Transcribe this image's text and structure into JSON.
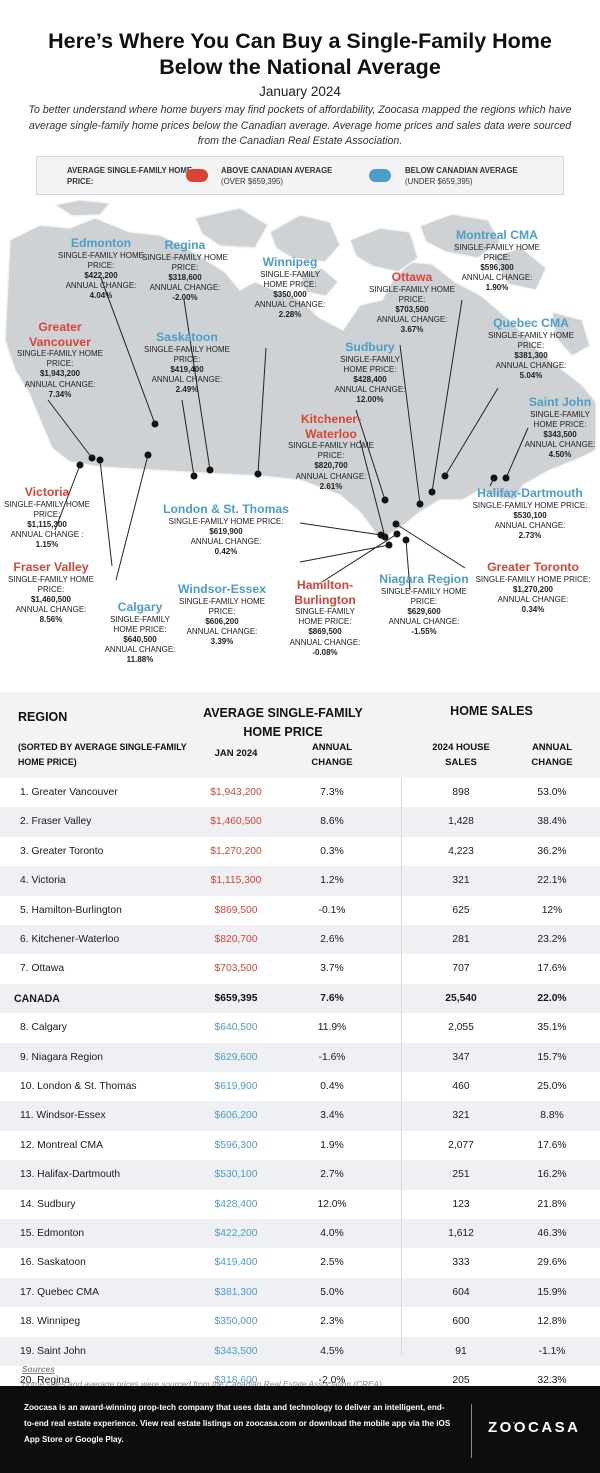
{
  "header": {
    "title_line1": "Here’s Where You Can Buy a Single-Family Home",
    "title_line2": "Below the National Average",
    "subtitle": "January 2024",
    "intro": "To better understand where home buyers may find pockets of affordability, Zoocasa mapped the regions which have average single-family home prices below the Canadian average. Average home prices and sales data were sourced from the Canadian Real Estate Association."
  },
  "legend": {
    "title": "AVERAGE SINGLE-FAMILY HOME PRICE:",
    "above_label": "ABOVE CANADIAN AVERAGE",
    "above_sub": "(OVER  $659,395)",
    "below_label": "BELOW CANADIAN AVERAGE",
    "below_sub": "(UNDER  $659,395)"
  },
  "colors": {
    "above": "#d94436",
    "below": "#4b9ec8",
    "map_fill": "#cfd2d5",
    "map_stroke": "#f4f5f6"
  },
  "map_labels": {
    "price_text": "SINGLE-FAMILY HOME PRICE:",
    "change_text": "ANNUAL CHANGE:",
    "items": [
      {
        "name": "Edmonton",
        "price": "$422,200",
        "change": "4.04%",
        "cls": "blue"
      },
      {
        "name": "Regina",
        "price": "$318,600",
        "change": "-2.00%",
        "cls": "blue"
      },
      {
        "name": "Winnipeg",
        "price": "$350,000",
        "change": "2.28%",
        "cls": "blue"
      },
      {
        "name": "Greater Vancouver",
        "price": "$1,943,200",
        "change": "7.34%",
        "cls": "red"
      },
      {
        "name": "Saskatoon",
        "price": "$419,400",
        "change": "2.49%",
        "cls": "blue"
      },
      {
        "name": "Ottawa",
        "price": "$703,500",
        "change": "3.67%",
        "cls": "red"
      },
      {
        "name": "Montreal CMA",
        "price": "$596,300",
        "change": "1.90%",
        "cls": "blue"
      },
      {
        "name": "Quebec CMA",
        "price": "$381,300",
        "change": "5.04%",
        "cls": "blue"
      },
      {
        "name": "Sudbury",
        "price": "$428,400",
        "change": "12.00%",
        "cls": "blue"
      },
      {
        "name": "Saint John",
        "price": "$343,500",
        "change": "4.50%",
        "cls": "blue"
      },
      {
        "name": "Kitchener-Waterloo",
        "price": "$820,700",
        "change": "2.61%",
        "cls": "red"
      },
      {
        "name": "Victoria",
        "price": "$1,115,300",
        "change": "1.15%",
        "cls": "red",
        "change_text": "ANNUAL CHANGE :"
      },
      {
        "name": "London & St. Thomas",
        "price": "$619,900",
        "change": "0.42%",
        "cls": "blue"
      },
      {
        "name": "Halifax-Dartmouth",
        "price": "$530,100",
        "change": "2.73%",
        "cls": "blue"
      },
      {
        "name": "Fraser Valley",
        "price": "$1,460,500",
        "change": "8.56%",
        "cls": "red"
      },
      {
        "name": "Windsor-Essex",
        "price": "$606,200",
        "change": "3.39%",
        "cls": "blue"
      },
      {
        "name": "Greater Toronto",
        "price": "$1,270,200",
        "change": "0.34%",
        "cls": "red"
      },
      {
        "name": "Hamilton-Burlington",
        "price": "$869,500",
        "change": "-0.08%",
        "cls": "red"
      },
      {
        "name": "Niagara Region",
        "price": "$629,600",
        "change": "-1.55%",
        "cls": "blue"
      },
      {
        "name": "Calgary",
        "price": "$640,500",
        "change": "11.88%",
        "cls": "blue"
      }
    ]
  },
  "table": {
    "h_region": "REGION",
    "h_sorted": "(SORTED BY AVERAGE SINGLE-FAMILY HOME PRICE)",
    "h_price": "AVERAGE SINGLE-FAMILY HOME PRICE",
    "h_sales": "HOME SALES",
    "h_jan": "JAN 2024",
    "h_annual": "ANNUAL CHANGE",
    "h_house_sales": "2024 HOUSE SALES",
    "h_annual2": "ANNUAL CHANGE"
  },
  "chart_data": {
    "type": "table",
    "columns": [
      "Region",
      "Jan 2024",
      "Annual Change",
      "2024 House Sales",
      "Annual Change"
    ],
    "rows": [
      {
        "region": "1. Greater Vancouver",
        "price": "$1,943,200",
        "price_change": "7.3%",
        "sales": "898",
        "sales_change": "53.0%",
        "cls": "above"
      },
      {
        "region": "2. Fraser Valley",
        "price": "$1,460,500",
        "price_change": "8.6%",
        "sales": "1,428",
        "sales_change": "38.4%",
        "cls": "above"
      },
      {
        "region": "3. Greater Toronto",
        "price": "$1,270,200",
        "price_change": "0.3%",
        "sales": "4,223",
        "sales_change": "36.2%",
        "cls": "above"
      },
      {
        "region": "4. Victoria",
        "price": "$1,115,300",
        "price_change": "1.2%",
        "sales": "321",
        "sales_change": "22.1%",
        "cls": "above"
      },
      {
        "region": "5. Hamilton-Burlington",
        "price": "$869,500",
        "price_change": "-0.1%",
        "sales": "625",
        "sales_change": "12%",
        "cls": "above"
      },
      {
        "region": "6. Kitchener-Waterloo",
        "price": "$820,700",
        "price_change": "2.6%",
        "sales": "281",
        "sales_change": "23.2%",
        "cls": "above"
      },
      {
        "region": "7. Ottawa",
        "price": "$703,500",
        "price_change": "3.7%",
        "sales": "707",
        "sales_change": "17.6%",
        "cls": "above"
      },
      {
        "region": "CANADA",
        "price": "$659,395",
        "price_change": "7.6%",
        "sales": "25,540",
        "sales_change": "22.0%",
        "cls": "canada"
      },
      {
        "region": "8. Calgary",
        "price": "$640,500",
        "price_change": "11.9%",
        "sales": "2,055",
        "sales_change": "35.1%",
        "cls": "below"
      },
      {
        "region": "9. Niagara Region",
        "price": "$629,600",
        "price_change": "-1.6%",
        "sales": "347",
        "sales_change": "15.7%",
        "cls": "below"
      },
      {
        "region": "10. London & St. Thomas",
        "price": "$619,900",
        "price_change": "0.4%",
        "sales": "460",
        "sales_change": "25.0%",
        "cls": "below"
      },
      {
        "region": "11. Windsor-Essex",
        "price": "$606,200",
        "price_change": "3.4%",
        "sales": "321",
        "sales_change": "8.8%",
        "cls": "below"
      },
      {
        "region": "12. Montreal CMA",
        "price": "$596,300",
        "price_change": "1.9%",
        "sales": "2,077",
        "sales_change": "17.6%",
        "cls": "below"
      },
      {
        "region": "13. Halifax-Dartmouth",
        "price": "$530,100",
        "price_change": "2.7%",
        "sales": "251",
        "sales_change": "16.2%",
        "cls": "below"
      },
      {
        "region": "14. Sudbury",
        "price": "$428,400",
        "price_change": "12.0%",
        "sales": "123",
        "sales_change": "21.8%",
        "cls": "below"
      },
      {
        "region": "15. Edmonton",
        "price": "$422,200",
        "price_change": "4.0%",
        "sales": "1,612",
        "sales_change": "46.3%",
        "cls": "below"
      },
      {
        "region": "16. Saskatoon",
        "price": "$419,400",
        "price_change": "2.5%",
        "sales": "333",
        "sales_change": "29.6%",
        "cls": "below"
      },
      {
        "region": "17. Quebec CMA",
        "price": "$381,300",
        "price_change": "5.0%",
        "sales": "604",
        "sales_change": "15.9%",
        "cls": "below"
      },
      {
        "region": "18. Winnipeg",
        "price": "$350,000",
        "price_change": "2.3%",
        "sales": "600",
        "sales_change": "12.8%",
        "cls": "below"
      },
      {
        "region": "19. Saint John",
        "price": "$343,500",
        "price_change": "4.5%",
        "sales": "91",
        "sales_change": "-1.1%",
        "cls": "below"
      },
      {
        "region": "20. Regina",
        "price": "$318,600",
        "price_change": "-2.0%",
        "sales": "205",
        "sales_change": "32.3%",
        "cls": "below"
      }
    ]
  },
  "sources": {
    "heading": "Sources",
    "text": "Home sales and average prices were sourced from the Canadian Real Estate Association (CREA)"
  },
  "footer": {
    "about": "Zoocasa is an award-winning prop-tech company that uses data and technology to deliver an intelligent, end-to-end real estate experience. View real estate listings on zoocasa.com or download the mobile app via the iOS App Store or Google Play.",
    "logo": "ZO͘OCASA"
  }
}
